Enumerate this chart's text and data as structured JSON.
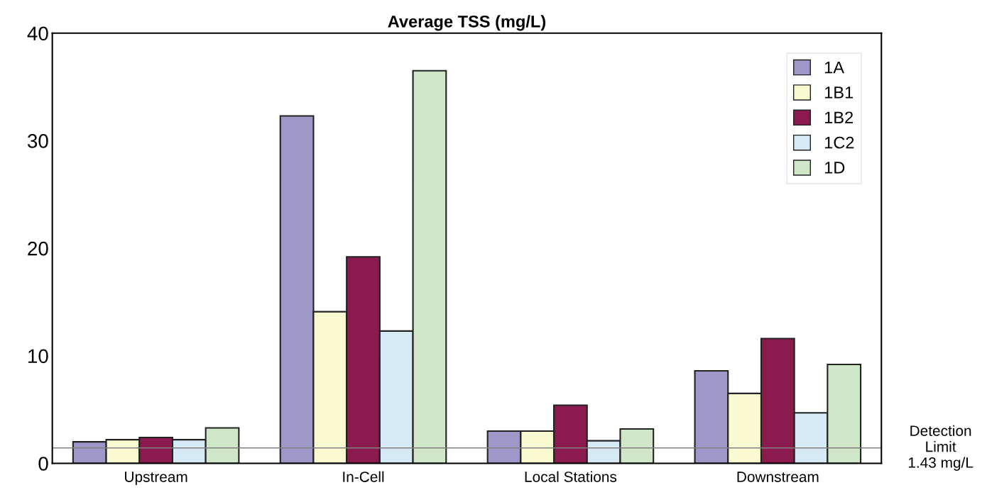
{
  "chart_data": {
    "type": "bar",
    "title": "Average TSS (mg/L)",
    "categories": [
      "Upstream",
      "In-Cell",
      "Local Stations",
      "Downstream"
    ],
    "series": [
      {
        "name": "1A",
        "color": "#9f97c8",
        "values": [
          2.0,
          32.3,
          3.0,
          8.6
        ]
      },
      {
        "name": "1B1",
        "color": "#fafad2",
        "values": [
          2.2,
          14.1,
          3.0,
          6.5
        ]
      },
      {
        "name": "1B2",
        "color": "#8b1a4f",
        "values": [
          2.4,
          19.2,
          5.4,
          11.6
        ]
      },
      {
        "name": "1C2",
        "color": "#d6eaf5",
        "values": [
          2.2,
          12.3,
          2.1,
          4.7
        ]
      },
      {
        "name": "1D",
        "color": "#d0e6c8",
        "values": [
          3.3,
          36.5,
          3.2,
          9.2
        ]
      }
    ],
    "ylim": [
      0,
      40
    ],
    "yticks": [
      0,
      10,
      20,
      30,
      40
    ],
    "ref_lines": [
      {
        "axis": "y",
        "value": 1.43,
        "label": "Detection\nLimit\n1.43 mg/L",
        "color": "#808080",
        "line_style": "solid"
      }
    ],
    "legend": "top right"
  }
}
